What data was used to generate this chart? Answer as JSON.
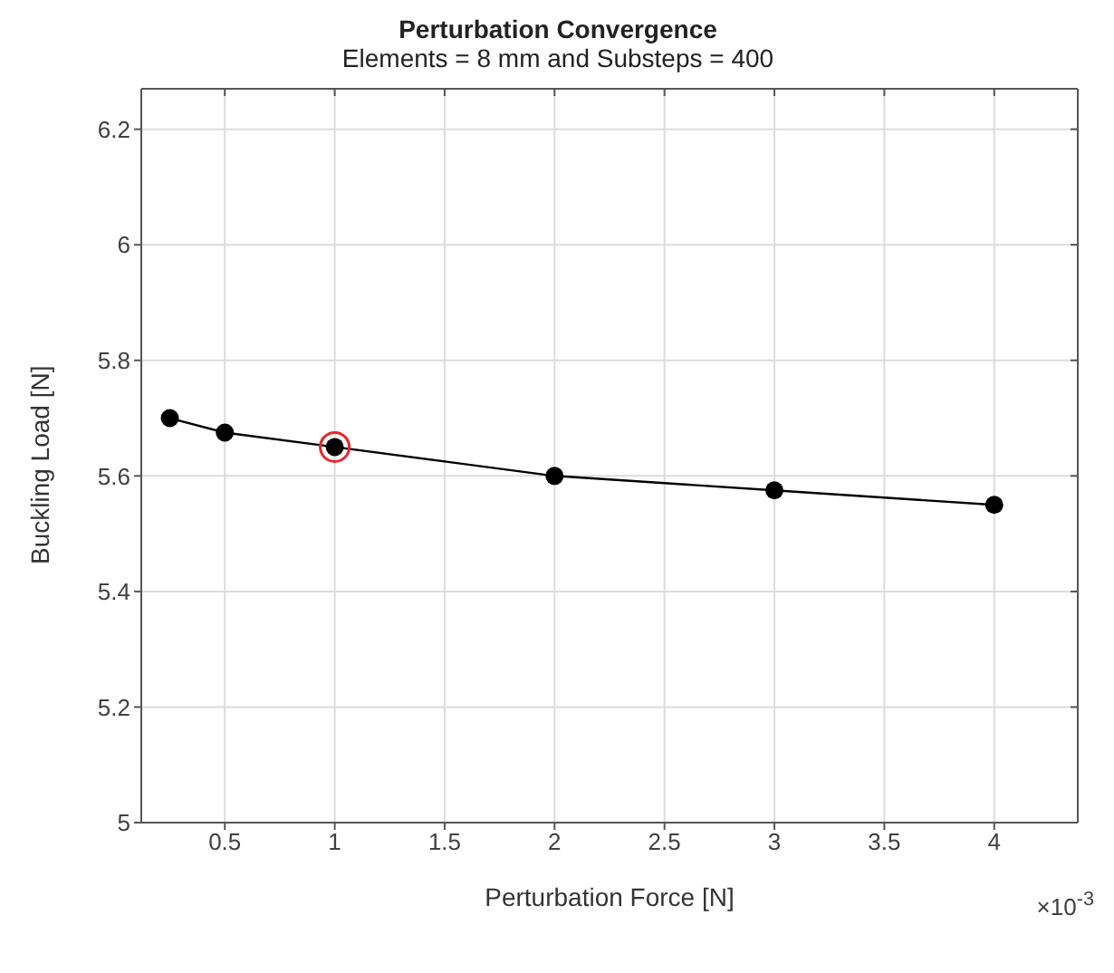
{
  "chart_data": {
    "type": "line",
    "title": "Perturbation Convergence",
    "subtitle": "Elements = 8 mm and Substeps = 400",
    "xlabel": "Perturbation Force [N]",
    "ylabel": "Buckling Load [N]",
    "annotations": [
      "×10$^{-3}$"
    ],
    "x": [
      0.25,
      0.5,
      1,
      2,
      3,
      4
    ],
    "series": [
      {
        "color": "#000000",
        "values": [
          5.7,
          5.675,
          5.65,
          5.6,
          5.575,
          5.55
        ],
        "marker": "circle"
      },
      {
        "type": "scatter",
        "color": "#e8272a",
        "x": [
          1
        ],
        "values": [
          5.65
        ],
        "marker": "circle"
      }
    ],
    "xlim": [
      0.12,
      4.38
    ],
    "xticks": [
      0.5,
      1,
      1.5,
      2,
      2.5,
      3,
      3.5,
      4
    ],
    "ylim": [
      5,
      6.27
    ],
    "yticks": [
      5,
      5.2,
      5.4,
      5.6,
      5.8,
      6,
      6.2
    ],
    "grid": true
  }
}
